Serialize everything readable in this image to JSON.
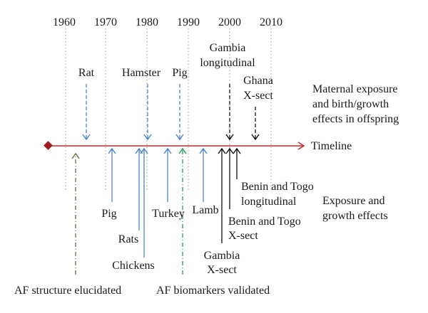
{
  "years": [
    "1960",
    "1970",
    "1980",
    "1990",
    "2000",
    "2010"
  ],
  "timeline_label": "Timeline",
  "top_events": {
    "rat": "Rat",
    "hamster": "Hamster",
    "pig": "Pig",
    "gambia_1": "Gambia",
    "gambia_2": "longitudinal",
    "ghana_1": "Ghana",
    "ghana_2": "X-sect"
  },
  "maternal_label": [
    "Maternal exposure",
    "and birth/growth",
    "effects in offspring"
  ],
  "bottom_events": {
    "pig": "Pig",
    "rats": "Rats",
    "chickens": "Chickens",
    "turkey": "Turkey",
    "lamb": "Lamb",
    "gambia_1": "Gambia",
    "gambia_2": "X-sect",
    "benin_xsect_1": "Benin and Togo",
    "benin_xsect_2": "X-sect",
    "benin_long_1": "Benin and Togo",
    "benin_long_2": "longitudinal"
  },
  "exposure_label": [
    "Exposure and",
    "growth effects"
  ],
  "af_structure": "AF structure elucidated",
  "af_biomarkers": "AF biomarkers validated",
  "colors": {
    "timeline": "#c0282a",
    "diamond": "#a01c1c",
    "blue": "#4a86c5",
    "black": "#111111",
    "olive": "#6b6b3a",
    "green": "#1e9e5a",
    "grid": "#9a9a9a"
  }
}
